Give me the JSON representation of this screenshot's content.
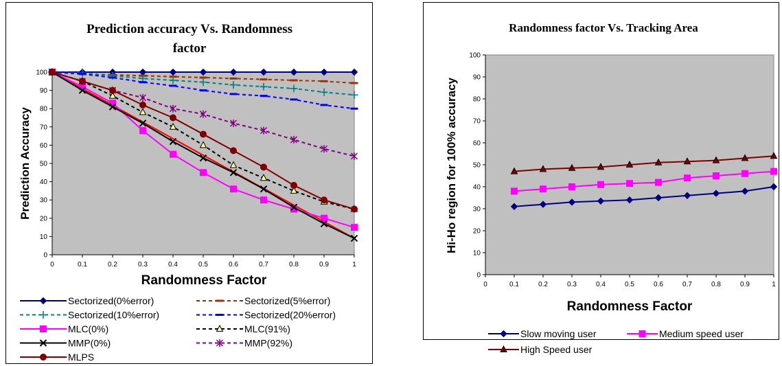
{
  "chart_data": [
    {
      "type": "line",
      "title_lines": [
        "Prediction accuracy Vs. Randomness",
        "factor"
      ],
      "xlabel": "Randomness Factor",
      "ylabel": "Prediction Accuracy",
      "x": [
        0,
        0.1,
        0.2,
        0.3,
        0.4,
        0.5,
        0.6,
        0.7,
        0.8,
        0.9,
        1
      ],
      "xticks": [
        "0",
        "0.1",
        "0.2",
        "0.3",
        "0.4",
        "0.5",
        "0.6",
        "0.7",
        "0.8",
        "0.9",
        "1"
      ],
      "yticks": [
        "0",
        "10",
        "20",
        "30",
        "40",
        "50",
        "60",
        "70",
        "80",
        "90",
        "100"
      ],
      "xlim": [
        0,
        1
      ],
      "ylim": [
        0,
        100
      ],
      "plot_background": "#c0c0c0",
      "grid": false,
      "legend_position": "bottom",
      "series": [
        {
          "name": "Sectorized(0%error)",
          "color": "#000080",
          "dash": "solid",
          "marker": "diamond",
          "values": [
            100,
            100,
            100,
            100,
            100,
            100,
            100,
            100,
            100,
            100,
            100
          ]
        },
        {
          "name": "Sectorized(5%error)",
          "color": "#993300",
          "dash": "dashed",
          "marker": "dash",
          "values": [
            100,
            99,
            98.5,
            98,
            97.5,
            97,
            96.5,
            96,
            95.5,
            95,
            94
          ]
        },
        {
          "name": "Sectorized(10%error)",
          "color": "#008080",
          "dash": "dashed",
          "marker": "plus",
          "values": [
            100,
            99.5,
            98,
            96.5,
            95.5,
            94.5,
            93,
            92,
            91,
            89,
            87.5
          ]
        },
        {
          "name": "Sectorized(20%error)",
          "color": "#0000ff",
          "dash": "dashed",
          "marker": "dash",
          "values": [
            100,
            99,
            97,
            94.5,
            92.5,
            90,
            88,
            87,
            85,
            82,
            80
          ]
        },
        {
          "name": "MLC(0%)",
          "color": "#ff00ff",
          "dash": "solid",
          "marker": "square",
          "values": [
            100,
            92,
            83,
            68,
            55,
            45,
            36,
            30,
            25,
            20,
            15
          ]
        },
        {
          "name": "MLC(91%)",
          "color": "#000000",
          "dash": "dashed",
          "marker": "triangle",
          "values": [
            100,
            95,
            87,
            78,
            70,
            60,
            49,
            42,
            35,
            29,
            25
          ]
        },
        {
          "name": "MMP(0%)",
          "color": "#000000",
          "dash": "solid",
          "marker": "x",
          "values": [
            100,
            90,
            81,
            72,
            62,
            53,
            45,
            36,
            26,
            17,
            9
          ]
        },
        {
          "name": "MMP(92%)",
          "color": "#800080",
          "dash": "dashed",
          "marker": "star",
          "values": [
            100,
            95,
            90,
            86,
            80,
            77,
            72,
            68,
            63,
            58,
            54
          ]
        },
        {
          "name": "MLPS",
          "color": "#800000",
          "dash": "solid",
          "marker": "circle",
          "values": [
            100,
            95,
            90,
            82,
            75,
            66,
            57,
            48,
            38,
            30,
            25
          ]
        }
      ],
      "extra_line": {
        "color": "#ff0000",
        "points": [
          [
            0,
            100
          ],
          [
            1,
            9
          ]
        ]
      }
    },
    {
      "type": "line",
      "title_lines": [
        "Randomness factor Vs. Tracking Area"
      ],
      "xlabel": "Randomness Factor",
      "ylabel": "Hi-Ho region for 100% accuracy",
      "x": [
        0.1,
        0.2,
        0.3,
        0.4,
        0.5,
        0.6,
        0.7,
        0.8,
        0.9,
        1
      ],
      "xticks": [
        "0",
        "0.1",
        "0.2",
        "0.3",
        "0.4",
        "0.5",
        "0.6",
        "0.7",
        "0.8",
        "0.9",
        "1"
      ],
      "yticks": [
        "0",
        "10",
        "20",
        "30",
        "40",
        "50",
        "60",
        "70",
        "80",
        "90",
        "100"
      ],
      "xlim": [
        0,
        1
      ],
      "ylim": [
        0,
        100
      ],
      "plot_background": "#c0c0c0",
      "grid": false,
      "legend_position": "bottom",
      "series": [
        {
          "name": "Slow moving user",
          "color": "#000080",
          "dash": "solid",
          "marker": "diamond",
          "values": [
            31,
            32,
            33,
            33.5,
            34,
            35,
            36,
            37,
            38,
            40
          ]
        },
        {
          "name": "Medium speed user",
          "color": "#ff00ff",
          "dash": "solid",
          "marker": "square",
          "values": [
            38,
            39,
            40,
            41,
            41.5,
            42,
            44,
            45,
            46,
            47
          ]
        },
        {
          "name": "High Speed user",
          "color": "#800000",
          "dash": "solid",
          "marker": "triangle",
          "values": [
            47,
            48,
            48.5,
            49,
            50,
            51,
            51.5,
            52,
            53,
            54
          ]
        }
      ]
    }
  ]
}
